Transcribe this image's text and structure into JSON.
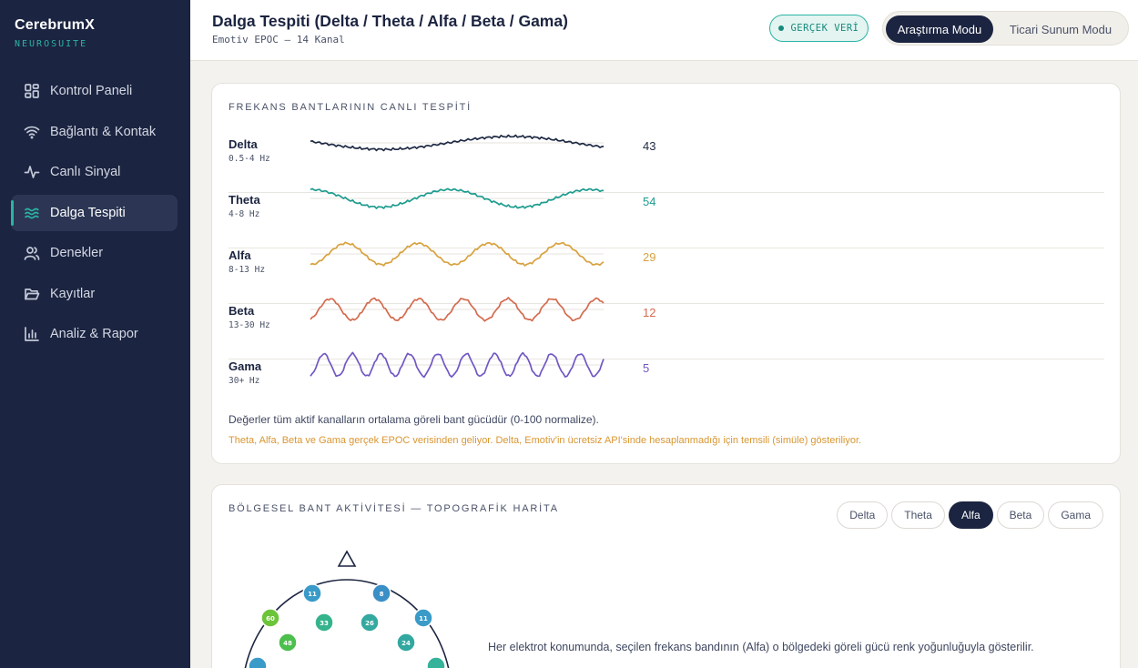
{
  "brand": {
    "name": "CerebrumX",
    "sub": "NEUROSUITE"
  },
  "sidebar": {
    "items": [
      {
        "label": "Kontrol Paneli",
        "icon": "dashboard-icon"
      },
      {
        "label": "Bağlantı & Kontak",
        "icon": "wifi-icon"
      },
      {
        "label": "Canlı Sinyal",
        "icon": "pulse-icon"
      },
      {
        "label": "Dalga Tespiti",
        "icon": "waves-icon",
        "active": true
      },
      {
        "label": "Denekler",
        "icon": "users-icon"
      },
      {
        "label": "Kayıtlar",
        "icon": "folder-icon"
      },
      {
        "label": "Analiz & Rapor",
        "icon": "bar-chart-icon"
      }
    ]
  },
  "header": {
    "title": "Dalga Tespiti (Delta / Theta / Alfa / Beta / Gama)",
    "subtitle": "Emotiv EPOC — 14 Kanal",
    "badge": "GERÇEK VERİ",
    "modes": {
      "active": "Araştırma Modu",
      "inactive": "Ticari Sunum Modu"
    }
  },
  "live": {
    "title": "FREKANS BANTLARININ CANLI TESPİTİ",
    "bands": [
      {
        "name": "Delta",
        "hz": "0.5-4 Hz",
        "value": "43",
        "color": "#1f2a44",
        "cycles": 1.15,
        "amp": 0.55,
        "phase": 2.9
      },
      {
        "name": "Theta",
        "hz": "4-8 Hz",
        "value": "54",
        "color": "#1e9c8f",
        "cycles": 2.1,
        "amp": 0.75,
        "phase": 1.57
      },
      {
        "name": "Alfa",
        "hz": "8-13 Hz",
        "value": "29",
        "color": "#d8a23f",
        "cycles": 4.1,
        "amp": 0.9,
        "phase": -1.57
      },
      {
        "name": "Beta",
        "hz": "13-30 Hz",
        "value": "12",
        "color": "#d36b4f",
        "cycles": 6.6,
        "amp": 0.9,
        "phase": -1.2
      },
      {
        "name": "Gama",
        "hz": "30+ Hz",
        "value": "5",
        "color": "#7257c4",
        "cycles": 10.3,
        "amp": 0.95,
        "phase": -1.4
      }
    ],
    "note": "Değerler tüm aktif kanalların ortalama göreli bant gücüdür (0-100 normalize).",
    "warning": "Theta, Alfa, Beta ve Gama gerçek EPOC verisinden geliyor. Delta, Emotiv'in ücretsiz API'sinde hesaplanmadığı için temsili (simüle) gösteriliyor."
  },
  "topo": {
    "title": "BÖLGESEL BANT AKTİVİTESİ — TOPOGRAFİK HARİTA",
    "tabs": [
      "Delta",
      "Theta",
      "Alfa",
      "Beta",
      "Gama"
    ],
    "active_tab": "Alfa",
    "electrodes": [
      {
        "value": "11",
        "color": "#3a9bc8"
      },
      {
        "value": "8",
        "color": "#3a8fc6"
      },
      {
        "value": "60",
        "color": "#6cc43a"
      },
      {
        "value": "33",
        "color": "#35b38c"
      },
      {
        "value": "26",
        "color": "#34a9a0"
      },
      {
        "value": "11",
        "color": "#3a9bc8"
      },
      {
        "value": "48",
        "color": "#4cbf4c"
      },
      {
        "value": "24",
        "color": "#32a8a0"
      },
      {
        "value": "",
        "color": "#3a9bc8"
      },
      {
        "value": "",
        "color": "#35b39a"
      }
    ],
    "description": "Her elektrot konumunda, seçilen frekans bandının (Alfa) o bölgedeki göreli gücü renk yoğunluğuyla gösterilir."
  }
}
